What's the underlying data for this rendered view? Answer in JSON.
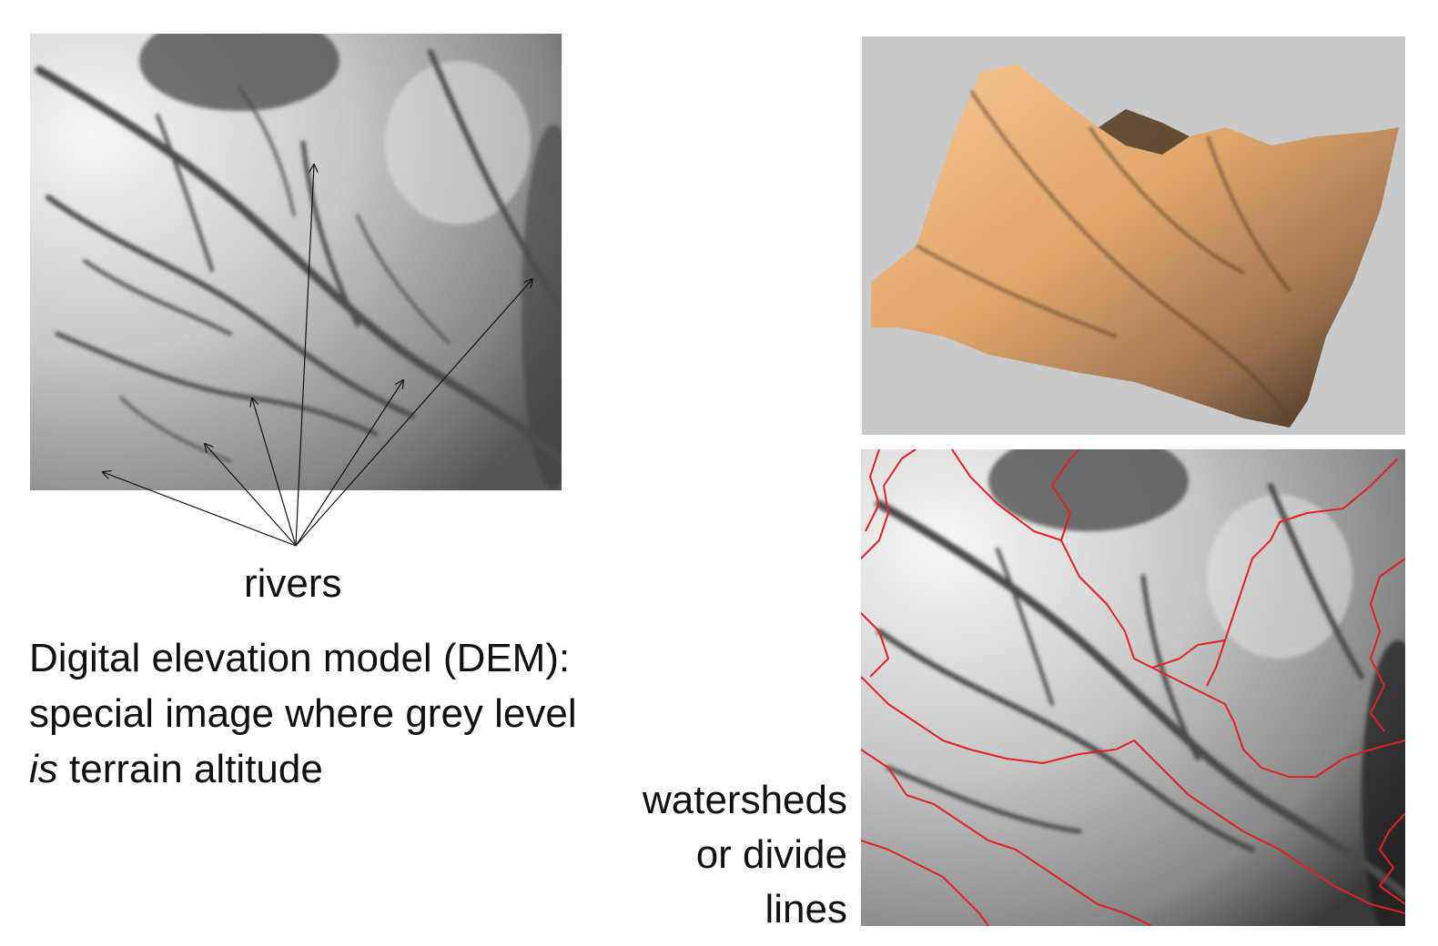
{
  "labels": {
    "rivers": "rivers",
    "caption": {
      "line1": "Digital elevation model (DEM):",
      "line2": "special image where grey level",
      "line3_italic": "is",
      "line3_rest": " terrain altitude"
    },
    "watershed": {
      "line1": "watersheds",
      "line2": "or divide",
      "line3": "lines"
    }
  },
  "colors": {
    "divide_lines": "#e0202a",
    "terrain_light": "#f5c38a",
    "terrain_dark": "#3a2a1c",
    "panel_background": "#c9c9c9"
  }
}
